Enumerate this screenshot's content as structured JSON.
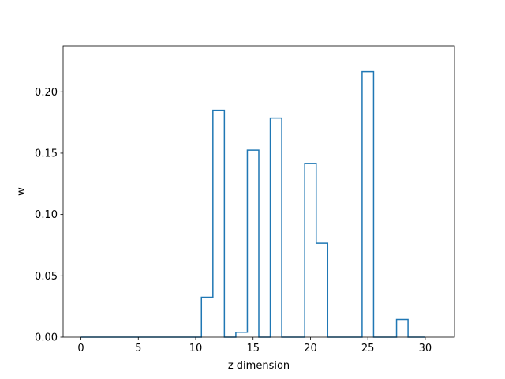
{
  "chart_data": {
    "type": "step",
    "xlabel": "z dimension",
    "ylabel": "w",
    "xlim": [
      -1.55,
      32.55
    ],
    "ylim": [
      0,
      0.2375
    ],
    "x_ticks": [
      0,
      5,
      10,
      15,
      20,
      25,
      30
    ],
    "y_ticks": [
      0.0,
      0.05,
      0.1,
      0.15,
      0.2
    ],
    "y_tick_labels": [
      "0.00",
      "0.05",
      "0.10",
      "0.15",
      "0.20"
    ],
    "grid": false,
    "series_color": "#1f77b4",
    "values": [
      0,
      0,
      0,
      0,
      0,
      0,
      0,
      0,
      0,
      0,
      0,
      0.0325,
      0.185,
      0,
      0.004,
      0.1525,
      0,
      0.1785,
      0,
      0,
      0.1415,
      0.0765,
      0,
      0,
      0,
      0.2165,
      0,
      0,
      0.0145,
      0,
      0
    ]
  }
}
